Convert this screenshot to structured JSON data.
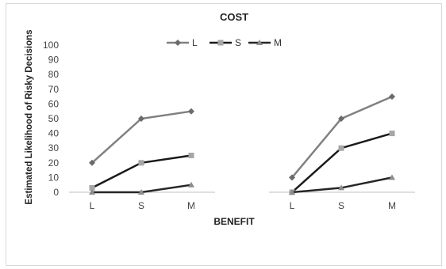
{
  "chart_data": {
    "type": "line",
    "title": "COST",
    "xlabel": "BENEFIT",
    "ylabel": "Estimated Likelihood of Risky Decisions",
    "ylim": [
      0,
      100
    ],
    "yticks": [
      0,
      10,
      20,
      30,
      40,
      50,
      60,
      70,
      80,
      90,
      100
    ],
    "categories": [
      "L",
      "S",
      "M"
    ],
    "grid": false,
    "legend_position": "top",
    "legend": [
      "L",
      "S",
      "M"
    ],
    "panels": [
      {
        "series": [
          {
            "name": "L",
            "values": [
              20,
              50,
              55
            ]
          },
          {
            "name": "S",
            "values": [
              3,
              20,
              25
            ]
          },
          {
            "name": "M",
            "values": [
              0,
              0,
              5
            ]
          }
        ]
      },
      {
        "series": [
          {
            "name": "L",
            "values": [
              10,
              50,
              65
            ]
          },
          {
            "name": "S",
            "values": [
              0,
              30,
              40
            ]
          },
          {
            "name": "M",
            "values": [
              0,
              3,
              10
            ]
          }
        ]
      }
    ],
    "series_styles": {
      "L": {
        "line": "#808080",
        "marker": "diamond",
        "marker_color": "#6b6b6b"
      },
      "S": {
        "line": "#1a1a1a",
        "marker": "square",
        "marker_color": "#a6a6a6"
      },
      "M": {
        "line": "#262626",
        "marker": "triangle",
        "marker_color": "#8c8c8c"
      }
    }
  }
}
